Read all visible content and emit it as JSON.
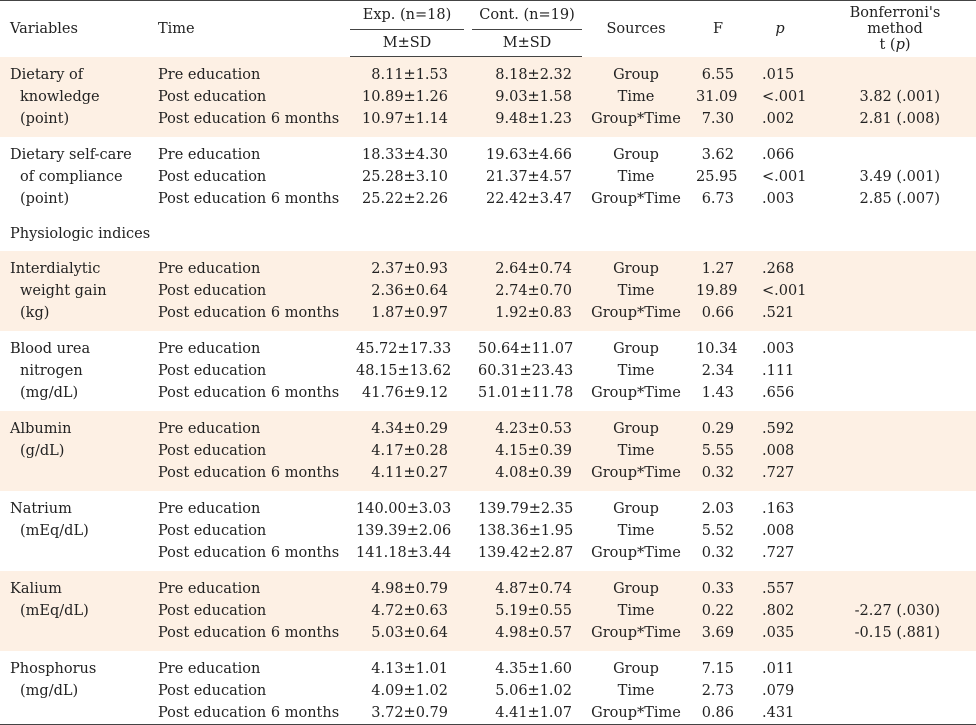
{
  "header": {
    "variables": "Variables",
    "time": "Time",
    "exp": "Exp. (n=18)",
    "cont": "Cont. (n=19)",
    "msd_exp": "M±SD",
    "msd_cont": "M±SD",
    "sources": "Sources",
    "f": "F",
    "p": "p",
    "bonf_line1": "Bonferroni's method",
    "bonf_line2_pre": "t (",
    "bonf_line2_p": "p",
    "bonf_line2_post": ")"
  },
  "section_physio": "Physiologic indices",
  "groups": [
    {
      "var": [
        "Dietary of",
        "knowledge",
        "(point)"
      ],
      "rows": [
        {
          "time": "Pre education",
          "exp": "8.11±1.53",
          "cont": "8.18±2.32",
          "src": "Group",
          "f": "6.55",
          "p": ".015",
          "bon": ""
        },
        {
          "time": "Post education",
          "exp": "10.89±1.26",
          "cont": "9.03±1.58",
          "src": "Time",
          "f": "31.09",
          "p": "<.001",
          "bon": "3.82 (.001)"
        },
        {
          "time": "Post education 6 months",
          "exp": "10.97±1.14",
          "cont": "9.48±1.23",
          "src": "Group*Time",
          "f": "7.30",
          "p": ".002",
          "bon": "2.81 (.008)"
        }
      ]
    },
    {
      "var": [
        "Dietary self-care",
        "of compliance",
        "(point)"
      ],
      "rows": [
        {
          "time": "Pre education",
          "exp": "18.33±4.30",
          "cont": "19.63±4.66",
          "src": "Group",
          "f": "3.62",
          "p": ".066",
          "bon": ""
        },
        {
          "time": "Post education",
          "exp": "25.28±3.10",
          "cont": "21.37±4.57",
          "src": "Time",
          "f": "25.95",
          "p": "<.001",
          "bon": "3.49 (.001)"
        },
        {
          "time": "Post education 6 months",
          "exp": "25.22±2.26",
          "cont": "22.42±3.47",
          "src": "Group*Time",
          "f": "6.73",
          "p": ".003",
          "bon": "2.85 (.007)"
        }
      ]
    },
    {
      "var": [
        "Interdialytic",
        "weight gain",
        "(kg)"
      ],
      "rows": [
        {
          "time": "Pre education",
          "exp": "2.37±0.93",
          "cont": "2.64±0.74",
          "src": "Group",
          "f": "1.27",
          "p": ".268",
          "bon": ""
        },
        {
          "time": "Post education",
          "exp": "2.36±0.64",
          "cont": "2.74±0.70",
          "src": "Time",
          "f": "19.89",
          "p": "<.001",
          "bon": ""
        },
        {
          "time": "Post education 6 months",
          "exp": "1.87±0.97",
          "cont": "1.92±0.83",
          "src": "Group*Time",
          "f": "0.66",
          "p": ".521",
          "bon": ""
        }
      ]
    },
    {
      "var": [
        "Blood urea",
        "nitrogen",
        "(mg/dL)"
      ],
      "rows": [
        {
          "time": "Pre education",
          "exp": "45.72±17.33",
          "cont": "50.64±11.07",
          "src": "Group",
          "f": "10.34",
          "p": ".003",
          "bon": ""
        },
        {
          "time": "Post education",
          "exp": "48.15±13.62",
          "cont": "60.31±23.43",
          "src": "Time",
          "f": "2.34",
          "p": ".111",
          "bon": ""
        },
        {
          "time": "Post education 6 months",
          "exp": "41.76±9.12",
          "cont": "51.01±11.78",
          "src": "Group*Time",
          "f": "1.43",
          "p": ".656",
          "bon": ""
        }
      ]
    },
    {
      "var": [
        "Albumin",
        "(g/dL)",
        ""
      ],
      "rows": [
        {
          "time": "Pre education",
          "exp": "4.34±0.29",
          "cont": "4.23±0.53",
          "src": "Group",
          "f": "0.29",
          "p": ".592",
          "bon": ""
        },
        {
          "time": "Post education",
          "exp": "4.17±0.28",
          "cont": "4.15±0.39",
          "src": "Time",
          "f": "5.55",
          "p": ".008",
          "bon": ""
        },
        {
          "time": "Post education 6 months",
          "exp": "4.11±0.27",
          "cont": "4.08±0.39",
          "src": "Group*Time",
          "f": "0.32",
          "p": ".727",
          "bon": ""
        }
      ]
    },
    {
      "var": [
        "Natrium",
        "(mEq/dL)",
        ""
      ],
      "rows": [
        {
          "time": "Pre education",
          "exp": "140.00±3.03",
          "cont": "139.79±2.35",
          "src": "Group",
          "f": "2.03",
          "p": ".163",
          "bon": ""
        },
        {
          "time": "Post education",
          "exp": "139.39±2.06",
          "cont": "138.36±1.95",
          "src": "Time",
          "f": "5.52",
          "p": ".008",
          "bon": ""
        },
        {
          "time": "Post education 6 months",
          "exp": "141.18±3.44",
          "cont": "139.42±2.87",
          "src": "Group*Time",
          "f": "0.32",
          "p": ".727",
          "bon": ""
        }
      ]
    },
    {
      "var": [
        "Kalium",
        "(mEq/dL)",
        ""
      ],
      "rows": [
        {
          "time": "Pre education",
          "exp": "4.98±0.79",
          "cont": "4.87±0.74",
          "src": "Group",
          "f": "0.33",
          "p": ".557",
          "bon": ""
        },
        {
          "time": "Post education",
          "exp": "4.72±0.63",
          "cont": "5.19±0.55",
          "src": "Time",
          "f": "0.22",
          "p": ".802",
          "bon": "-2.27 (.030)"
        },
        {
          "time": "Post education 6 months",
          "exp": "5.03±0.64",
          "cont": "4.98±0.57",
          "src": "Group*Time",
          "f": "3.69",
          "p": ".035",
          "bon": "-0.15 (.881)"
        }
      ]
    },
    {
      "var": [
        "Phosphorus",
        "(mg/dL)",
        ""
      ],
      "rows": [
        {
          "time": "Pre education",
          "exp": "4.13±1.01",
          "cont": "4.35±1.60",
          "src": "Group",
          "f": "7.15",
          "p": ".011",
          "bon": ""
        },
        {
          "time": "Post education",
          "exp": "4.09±1.02",
          "cont": "5.06±1.02",
          "src": "Time",
          "f": "2.73",
          "p": ".079",
          "bon": ""
        },
        {
          "time": "Post education 6 months",
          "exp": "3.72±0.79",
          "cont": "4.41±1.07",
          "src": "Group*Time",
          "f": "0.86",
          "p": ".431",
          "bon": ""
        }
      ]
    }
  ]
}
